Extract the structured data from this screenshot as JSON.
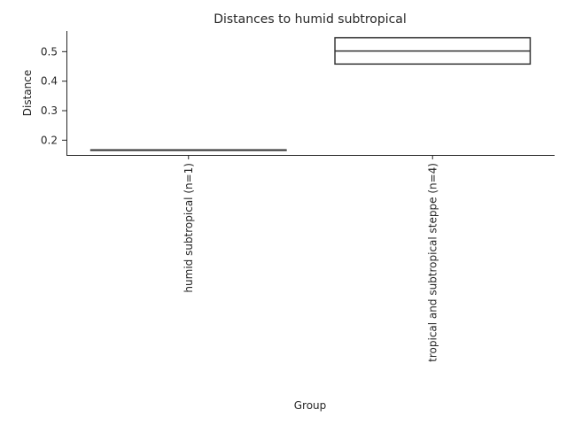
{
  "chart_data": {
    "type": "box",
    "title": "Distances to humid subtropical",
    "xlabel": "Group",
    "ylabel": "Distance",
    "ylim": [
      0.15,
      0.57
    ],
    "yticks": [
      0.2,
      0.3,
      0.4,
      0.5
    ],
    "grid": false,
    "categories": [
      "humid subtropical (n=1)",
      "tropical and subtropical steppe (n=4)"
    ],
    "boxes": [
      {
        "category": "humid subtropical (n=1)",
        "q1": 0.167,
        "median": 0.167,
        "q3": 0.167,
        "whisker_low": 0.167,
        "whisker_high": 0.167
      },
      {
        "category": "tropical and subtropical steppe (n=4)",
        "q1": 0.458,
        "median": 0.502,
        "q3": 0.547,
        "whisker_low": 0.458,
        "whisker_high": 0.547
      }
    ]
  }
}
